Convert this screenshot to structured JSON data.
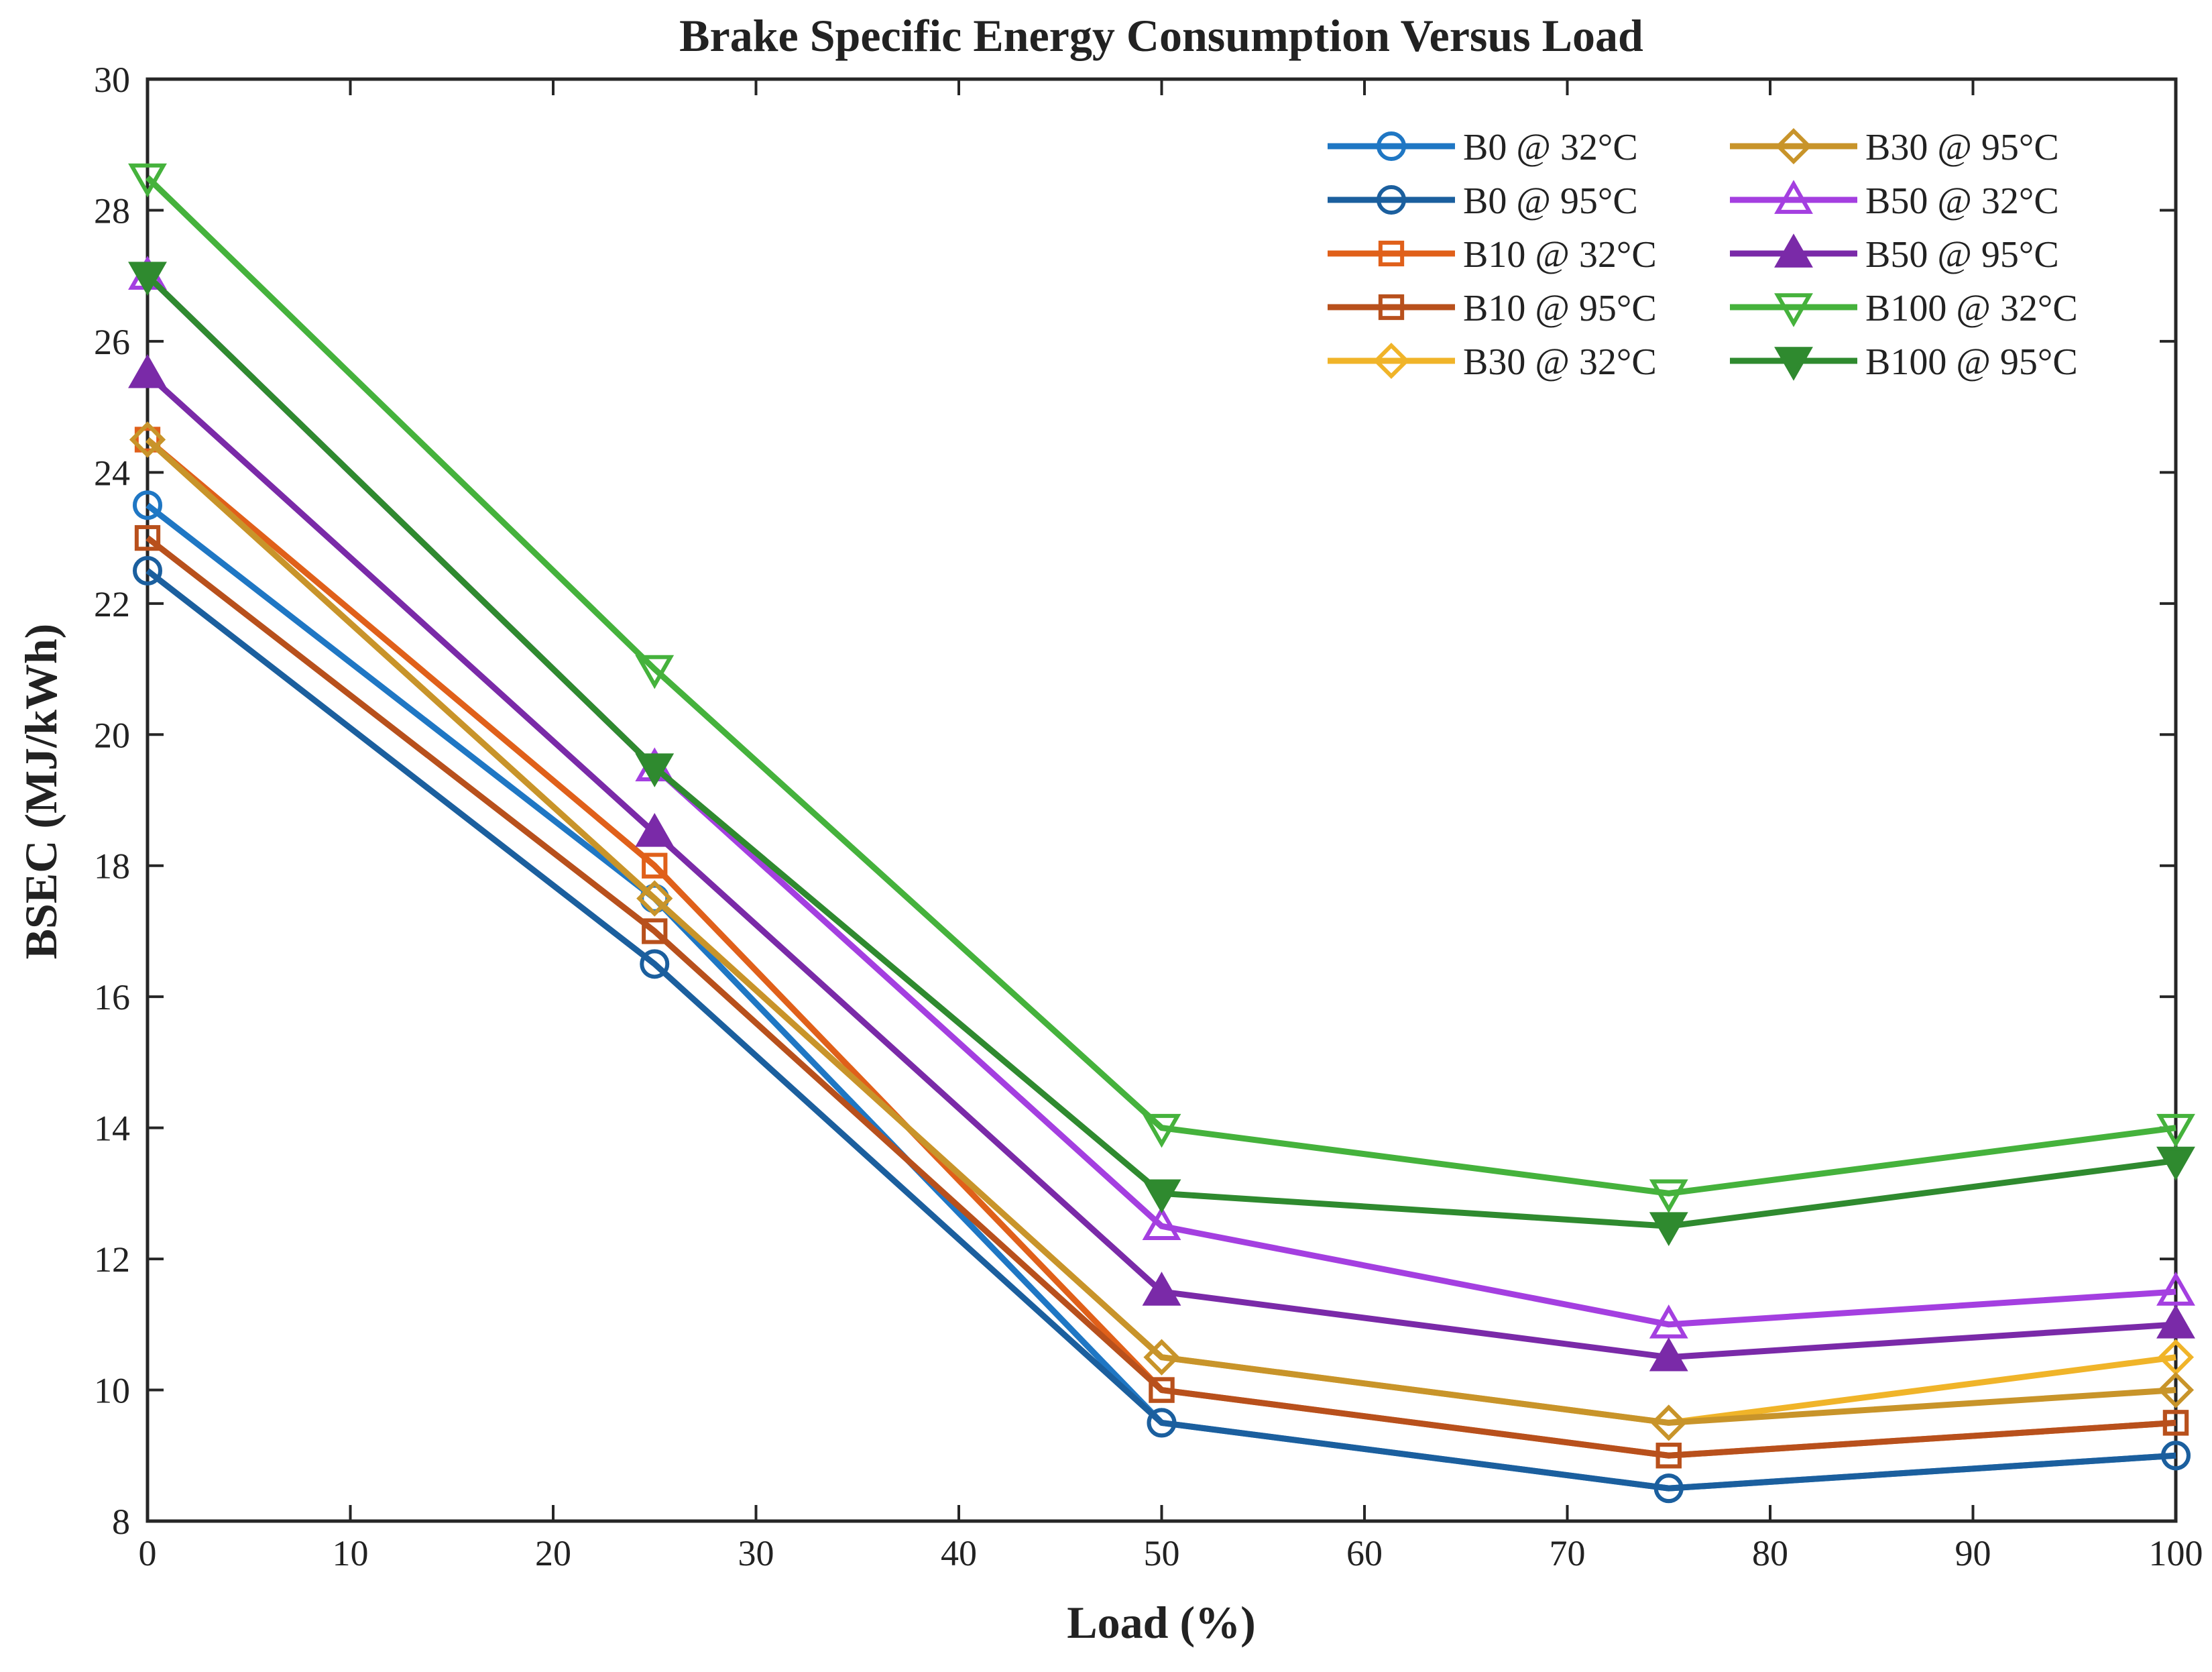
{
  "chart_data": {
    "type": "line",
    "title": "Brake Specific Energy Consumption Versus Load",
    "xlabel": "Load (%)",
    "ylabel": "BSEC (MJ/kWh)",
    "xlim": [
      0,
      100
    ],
    "ylim": [
      8,
      30
    ],
    "xticks": [
      0,
      10,
      20,
      30,
      40,
      50,
      60,
      70,
      80,
      90,
      100
    ],
    "yticks": [
      8,
      10,
      12,
      14,
      16,
      18,
      20,
      22,
      24,
      26,
      28,
      30
    ],
    "x": [
      0,
      25,
      50,
      75,
      100
    ],
    "grid": false,
    "legend_position": "top-right",
    "series": [
      {
        "name": "B0 @ 32°C",
        "values": [
          23.5,
          17.5,
          9.5,
          8.5,
          9.0
        ],
        "color": "#1f77c4",
        "marker": "circle",
        "filled": false
      },
      {
        "name": "B0 @ 95°C",
        "values": [
          22.5,
          16.5,
          9.5,
          8.5,
          9.0
        ],
        "color": "#1b5f9e",
        "marker": "circle",
        "filled": false
      },
      {
        "name": "B10 @ 32°C",
        "values": [
          24.5,
          18.0,
          10.0,
          9.0,
          9.5
        ],
        "color": "#e0601a",
        "marker": "square",
        "filled": false
      },
      {
        "name": "B10 @ 95°C",
        "values": [
          23.0,
          17.0,
          10.0,
          9.0,
          9.5
        ],
        "color": "#b8501c",
        "marker": "square",
        "filled": false
      },
      {
        "name": "B30 @ 32°C",
        "values": [
          24.5,
          17.5,
          10.5,
          9.5,
          10.5
        ],
        "color": "#f0b429",
        "marker": "diamond",
        "filled": false
      },
      {
        "name": "B30 @ 95°C",
        "values": [
          24.5,
          17.5,
          10.5,
          9.5,
          10.0
        ],
        "color": "#c8942a",
        "marker": "diamond",
        "filled": false
      },
      {
        "name": "B50 @ 32°C",
        "values": [
          27.0,
          19.5,
          12.5,
          11.0,
          11.5
        ],
        "color": "#a43fe0",
        "marker": "triangle-up",
        "filled": false
      },
      {
        "name": "B50 @ 95°C",
        "values": [
          25.5,
          18.5,
          11.5,
          10.5,
          11.0
        ],
        "color": "#7a2aa8",
        "marker": "triangle-up",
        "filled": true
      },
      {
        "name": "B100 @ 32°C",
        "values": [
          28.5,
          21.0,
          14.0,
          13.0,
          14.0
        ],
        "color": "#45b23c",
        "marker": "triangle-down",
        "filled": false
      },
      {
        "name": "B100 @ 95°C",
        "values": [
          27.0,
          19.5,
          13.0,
          12.5,
          13.5
        ],
        "color": "#2f8a2f",
        "marker": "triangle-down",
        "filled": true
      }
    ]
  }
}
